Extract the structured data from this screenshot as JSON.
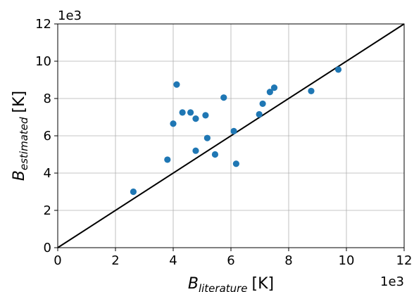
{
  "chart_data": {
    "type": "scatter",
    "title": "",
    "xlabel": {
      "symbol": "B",
      "subscript": "literature",
      "unit": "[K]"
    },
    "ylabel": {
      "symbol": "B",
      "subscript": "estimated",
      "unit": "[K]"
    },
    "x_multiplier_label": "1e3",
    "y_multiplier_label": "1e3",
    "xlim": [
      0,
      12
    ],
    "ylim": [
      0,
      12
    ],
    "xticks": [
      "0",
      "2",
      "4",
      "6",
      "8",
      "10",
      "12"
    ],
    "yticks": [
      "0",
      "2",
      "4",
      "6",
      "8",
      "10",
      "12"
    ],
    "xtick_values": [
      0,
      2,
      4,
      6,
      8,
      10,
      12
    ],
    "ytick_values": [
      0,
      2,
      4,
      6,
      8,
      10,
      12
    ],
    "grid": true,
    "reference_line": {
      "type": "identity",
      "from": [
        0,
        0
      ],
      "to": [
        12,
        12
      ],
      "color": "#000000"
    },
    "series": [
      {
        "marker_color": "#1f77b4",
        "points": [
          {
            "x": 2.62,
            "y": 3.0
          },
          {
            "x": 3.8,
            "y": 4.72
          },
          {
            "x": 4.0,
            "y": 6.65
          },
          {
            "x": 4.12,
            "y": 8.75
          },
          {
            "x": 4.32,
            "y": 7.25
          },
          {
            "x": 4.6,
            "y": 7.25
          },
          {
            "x": 4.78,
            "y": 6.92
          },
          {
            "x": 4.78,
            "y": 5.2
          },
          {
            "x": 5.12,
            "y": 7.1
          },
          {
            "x": 5.18,
            "y": 5.88
          },
          {
            "x": 5.45,
            "y": 5.0
          },
          {
            "x": 5.75,
            "y": 8.05
          },
          {
            "x": 6.1,
            "y": 6.25
          },
          {
            "x": 6.18,
            "y": 4.5
          },
          {
            "x": 6.98,
            "y": 7.15
          },
          {
            "x": 7.1,
            "y": 7.72
          },
          {
            "x": 7.35,
            "y": 8.35
          },
          {
            "x": 7.5,
            "y": 8.58
          },
          {
            "x": 8.78,
            "y": 8.4
          },
          {
            "x": 9.72,
            "y": 9.55
          }
        ]
      }
    ]
  }
}
